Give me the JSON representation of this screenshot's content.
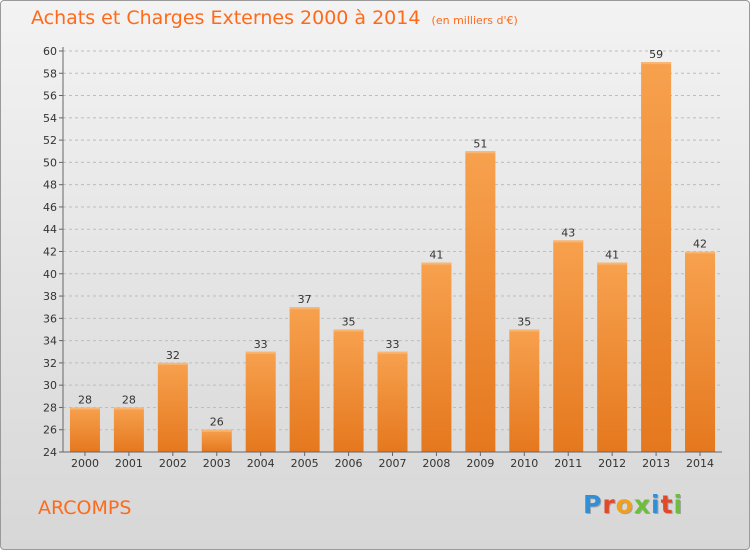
{
  "header": {
    "title": "Achats et Charges Externes 2000 à 2014",
    "subtitle": "(en milliers d'€)"
  },
  "footer": {
    "commune": "ARCOMPS",
    "brand": "Proxiti"
  },
  "colors": {
    "title": "#ff6a1a",
    "bar_light": "#f7a14e",
    "bar_dark": "#e5781e",
    "grid": "#bdbdbd",
    "brand_letters": [
      "#2f8fd8",
      "#e04a2a",
      "#f0a020",
      "#6cbf3a",
      "#2f8fd8",
      "#e04a2a",
      "#6cbf3a"
    ]
  },
  "chart_data": {
    "type": "bar",
    "title": "Achats et Charges Externes 2000 à 2014",
    "subtitle": "(en milliers d'€)",
    "categories": [
      "2000",
      "2001",
      "2002",
      "2003",
      "2004",
      "2005",
      "2006",
      "2007",
      "2008",
      "2009",
      "2010",
      "2011",
      "2012",
      "2013",
      "2014"
    ],
    "values": [
      28,
      28,
      32,
      26,
      33,
      37,
      35,
      33,
      41,
      51,
      35,
      43,
      41,
      59,
      42
    ],
    "ylim": [
      24,
      60
    ],
    "yticks": [
      24,
      26,
      28,
      30,
      32,
      34,
      36,
      38,
      40,
      42,
      44,
      46,
      48,
      50,
      52,
      54,
      56,
      58,
      60
    ],
    "grid": true,
    "data_labels": true,
    "xlabel": "",
    "ylabel": ""
  }
}
